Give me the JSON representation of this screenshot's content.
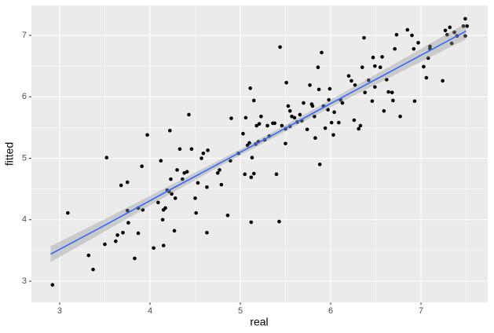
{
  "chart_data": {
    "type": "scatter",
    "x_label": "real",
    "y_label": "fitted",
    "xlim": [
      2.687,
      7.739
    ],
    "ylim": [
      2.655,
      7.486
    ],
    "xticks": [
      3,
      4,
      5,
      6,
      7
    ],
    "yticks": [
      3,
      4,
      5,
      6,
      7
    ],
    "x_minor_ticks": [
      3.5,
      4.5,
      5.5,
      6.5,
      7.5
    ],
    "y_minor_ticks": [
      3.5,
      4.5,
      5.5,
      6.5
    ],
    "grid": true,
    "background": "#ebebeb",
    "series": [
      {
        "color": "#000000",
        "x": [
          2.92,
          3.09,
          3.32,
          3.37,
          3.52,
          3.5,
          3.62,
          3.64,
          3.68,
          3.7,
          3.75,
          3.75,
          3.76,
          3.83,
          3.87,
          3.87,
          3.91,
          3.92,
          3.97,
          4.04,
          4.09,
          4.12,
          4.14,
          4.15,
          4.15,
          4.17,
          4.19,
          4.21,
          4.22,
          4.23,
          4.24,
          4.27,
          4.28,
          4.3,
          4.33,
          4.36,
          4.38,
          4.41,
          4.43,
          4.46,
          4.5,
          4.51,
          4.53,
          4.57,
          4.59,
          4.63,
          4.63,
          4.64,
          4.75,
          4.77,
          4.79,
          4.86,
          4.9,
          4.89,
          4.98,
          5.03,
          5.05,
          5.06,
          5.08,
          5.1,
          5.11,
          5.12,
          5.13,
          5.12,
          5.15,
          5.15,
          5.17,
          5.18,
          5.2,
          5.21,
          5.23,
          5.27,
          5.3,
          5.32,
          5.36,
          5.38,
          5.4,
          5.43,
          5.44,
          5.46,
          5.5,
          5.5,
          5.51,
          5.53,
          5.55,
          5.55,
          5.57,
          5.6,
          5.63,
          5.66,
          5.68,
          5.7,
          5.74,
          5.77,
          5.79,
          5.8,
          5.82,
          5.83,
          5.86,
          5.87,
          5.88,
          5.9,
          5.92,
          5.94,
          5.97,
          5.98,
          5.99,
          6.01,
          6.03,
          6.04,
          6.09,
          6.11,
          6.13,
          6.2,
          6.23,
          6.26,
          6.27,
          6.31,
          6.33,
          6.35,
          6.37,
          6.38,
          6.42,
          6.46,
          6.47,
          6.49,
          6.49,
          6.55,
          6.57,
          6.59,
          6.62,
          6.64,
          6.68,
          6.69,
          6.71,
          6.73,
          6.77,
          6.85,
          6.9,
          6.92,
          6.93,
          6.97,
          7.03,
          7.06,
          7.08,
          7.1,
          7.1,
          7.24,
          7.27,
          7.29,
          7.32,
          7.34,
          7.37,
          7.4,
          7.49,
          7.49,
          7.51,
          7.47
        ],
        "values": [
          2.94,
          4.11,
          3.42,
          3.19,
          5.01,
          3.6,
          3.65,
          3.75,
          4.56,
          3.79,
          4.61,
          4.15,
          3.95,
          3.37,
          3.78,
          4.19,
          4.87,
          4.16,
          5.38,
          3.54,
          4.28,
          4.96,
          4.0,
          4.16,
          3.58,
          4.19,
          4.48,
          4.46,
          5.45,
          4.66,
          4.42,
          3.82,
          4.35,
          4.81,
          5.15,
          4.66,
          4.76,
          4.78,
          5.71,
          5.15,
          4.35,
          4.11,
          4.6,
          5.0,
          5.08,
          4.53,
          3.79,
          5.13,
          4.76,
          4.81,
          4.57,
          4.07,
          5.65,
          4.96,
          5.08,
          5.4,
          4.74,
          5.66,
          5.21,
          5.25,
          6.14,
          4.69,
          5.01,
          3.96,
          4.75,
          5.94,
          5.23,
          5.53,
          5.27,
          5.56,
          5.68,
          5.3,
          5.53,
          5.36,
          5.57,
          5.57,
          4.74,
          3.97,
          6.81,
          5.53,
          5.48,
          5.24,
          6.23,
          5.85,
          5.77,
          5.52,
          5.68,
          5.66,
          5.59,
          5.71,
          5.61,
          5.9,
          5.47,
          6.19,
          5.88,
          5.85,
          5.68,
          5.33,
          6.48,
          6.12,
          4.9,
          6.72,
          5.85,
          5.49,
          5.79,
          5.95,
          6.13,
          5.58,
          5.38,
          5.75,
          5.58,
          5.95,
          5.9,
          6.34,
          6.26,
          5.62,
          6.19,
          5.48,
          5.53,
          6.48,
          6.96,
          6.07,
          6.27,
          5.93,
          6.64,
          6.16,
          6.5,
          6.48,
          6.65,
          5.77,
          6.28,
          6.08,
          6.07,
          5.94,
          6.78,
          7.01,
          5.68,
          7.09,
          7.0,
          6.78,
          5.93,
          6.88,
          6.49,
          6.31,
          6.63,
          6.78,
          6.82,
          6.26,
          7.08,
          7.01,
          7.13,
          6.87,
          7.05,
          6.99,
          7.27,
          6.99,
          7.15,
          7.15
        ]
      }
    ],
    "fit": {
      "color": "#3366ff",
      "band_color": "#999999",
      "x": [
        2.9,
        3.5,
        4.2,
        4.9,
        5.4,
        6.0,
        6.7,
        7.5
      ],
      "y": [
        3.44,
        3.91,
        4.47,
        5.02,
        5.41,
        5.89,
        6.44,
        7.07
      ],
      "lower": [
        3.31,
        3.81,
        4.4,
        4.97,
        5.36,
        5.83,
        6.35,
        6.94
      ],
      "upper": [
        3.57,
        4.01,
        4.54,
        5.07,
        5.46,
        5.95,
        6.53,
        7.2
      ]
    }
  }
}
